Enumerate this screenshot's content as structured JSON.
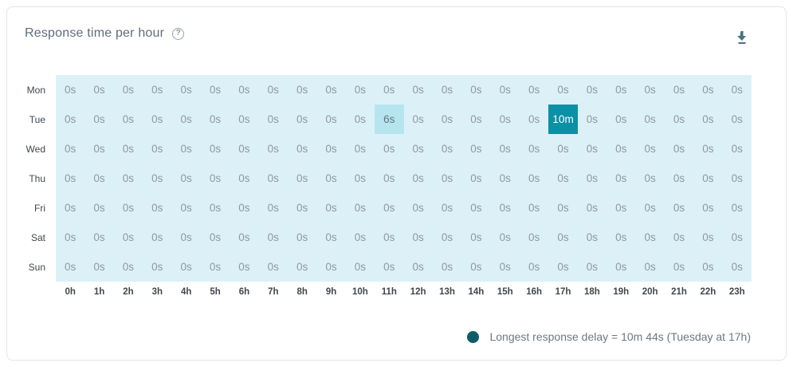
{
  "card": {
    "title": "Response time per hour",
    "help_glyph": "?",
    "help_icon": "question-circle",
    "download_icon": "download-arrow"
  },
  "chart_data": {
    "type": "heatmap",
    "title": "Response time per hour",
    "x_labels": [
      "0h",
      "1h",
      "2h",
      "3h",
      "4h",
      "5h",
      "6h",
      "7h",
      "8h",
      "9h",
      "10h",
      "11h",
      "12h",
      "13h",
      "14h",
      "15h",
      "16h",
      "17h",
      "18h",
      "19h",
      "20h",
      "21h",
      "22h",
      "23h"
    ],
    "y_labels": [
      "Mon",
      "Tue",
      "Wed",
      "Thu",
      "Fri",
      "Sat",
      "Sun"
    ],
    "cell_values": [
      [
        "0s",
        "0s",
        "0s",
        "0s",
        "0s",
        "0s",
        "0s",
        "0s",
        "0s",
        "0s",
        "0s",
        "0s",
        "0s",
        "0s",
        "0s",
        "0s",
        "0s",
        "0s",
        "0s",
        "0s",
        "0s",
        "0s",
        "0s",
        "0s"
      ],
      [
        "0s",
        "0s",
        "0s",
        "0s",
        "0s",
        "0s",
        "0s",
        "0s",
        "0s",
        "0s",
        "0s",
        "6s",
        "0s",
        "0s",
        "0s",
        "0s",
        "0s",
        "10m",
        "0s",
        "0s",
        "0s",
        "0s",
        "0s",
        "0s"
      ],
      [
        "0s",
        "0s",
        "0s",
        "0s",
        "0s",
        "0s",
        "0s",
        "0s",
        "0s",
        "0s",
        "0s",
        "0s",
        "0s",
        "0s",
        "0s",
        "0s",
        "0s",
        "0s",
        "0s",
        "0s",
        "0s",
        "0s",
        "0s",
        "0s"
      ],
      [
        "0s",
        "0s",
        "0s",
        "0s",
        "0s",
        "0s",
        "0s",
        "0s",
        "0s",
        "0s",
        "0s",
        "0s",
        "0s",
        "0s",
        "0s",
        "0s",
        "0s",
        "0s",
        "0s",
        "0s",
        "0s",
        "0s",
        "0s",
        "0s"
      ],
      [
        "0s",
        "0s",
        "0s",
        "0s",
        "0s",
        "0s",
        "0s",
        "0s",
        "0s",
        "0s",
        "0s",
        "0s",
        "0s",
        "0s",
        "0s",
        "0s",
        "0s",
        "0s",
        "0s",
        "0s",
        "0s",
        "0s",
        "0s",
        "0s"
      ],
      [
        "0s",
        "0s",
        "0s",
        "0s",
        "0s",
        "0s",
        "0s",
        "0s",
        "0s",
        "0s",
        "0s",
        "0s",
        "0s",
        "0s",
        "0s",
        "0s",
        "0s",
        "0s",
        "0s",
        "0s",
        "0s",
        "0s",
        "0s",
        "0s"
      ],
      [
        "0s",
        "0s",
        "0s",
        "0s",
        "0s",
        "0s",
        "0s",
        "0s",
        "0s",
        "0s",
        "0s",
        "0s",
        "0s",
        "0s",
        "0s",
        "0s",
        "0s",
        "0s",
        "0s",
        "0s",
        "0s",
        "0s",
        "0s",
        "0s"
      ]
    ],
    "levels": [
      [
        0,
        0,
        0,
        0,
        0,
        0,
        0,
        0,
        0,
        0,
        0,
        0,
        0,
        0,
        0,
        0,
        0,
        0,
        0,
        0,
        0,
        0,
        0,
        0
      ],
      [
        0,
        0,
        0,
        0,
        0,
        0,
        0,
        0,
        0,
        0,
        0,
        1,
        0,
        0,
        0,
        0,
        0,
        2,
        0,
        0,
        0,
        0,
        0,
        0
      ],
      [
        0,
        0,
        0,
        0,
        0,
        0,
        0,
        0,
        0,
        0,
        0,
        0,
        0,
        0,
        0,
        0,
        0,
        0,
        0,
        0,
        0,
        0,
        0,
        0
      ],
      [
        0,
        0,
        0,
        0,
        0,
        0,
        0,
        0,
        0,
        0,
        0,
        0,
        0,
        0,
        0,
        0,
        0,
        0,
        0,
        0,
        0,
        0,
        0,
        0
      ],
      [
        0,
        0,
        0,
        0,
        0,
        0,
        0,
        0,
        0,
        0,
        0,
        0,
        0,
        0,
        0,
        0,
        0,
        0,
        0,
        0,
        0,
        0,
        0,
        0
      ],
      [
        0,
        0,
        0,
        0,
        0,
        0,
        0,
        0,
        0,
        0,
        0,
        0,
        0,
        0,
        0,
        0,
        0,
        0,
        0,
        0,
        0,
        0,
        0,
        0
      ],
      [
        0,
        0,
        0,
        0,
        0,
        0,
        0,
        0,
        0,
        0,
        0,
        0,
        0,
        0,
        0,
        0,
        0,
        0,
        0,
        0,
        0,
        0,
        0,
        0
      ]
    ],
    "max_value": {
      "display": "10m",
      "day": "Tue",
      "hour": "17h"
    },
    "mid_value": {
      "display": "6s",
      "day": "Tue",
      "hour": "11h"
    },
    "grid": false,
    "legend_position": "bottom-right"
  },
  "legend": {
    "text": "Longest response delay = 10m 44s (Tuesday at 17h)"
  },
  "colors": {
    "cell-bg": "#dcf1f7",
    "cell-mid-bg": "#b7e5ef",
    "cell-max-bg": "#0b91a6",
    "cell-text": "#8d98a2",
    "cell-mid-text": "#5e7884",
    "cell-max-text": "#ffffff",
    "axis-label": "#3f474e",
    "title": "#5e6d7d",
    "legend-dot": "#0d5d69",
    "legend-text": "#6e7780",
    "icon": "#4b7282",
    "card-border": "#e3e5e8"
  }
}
